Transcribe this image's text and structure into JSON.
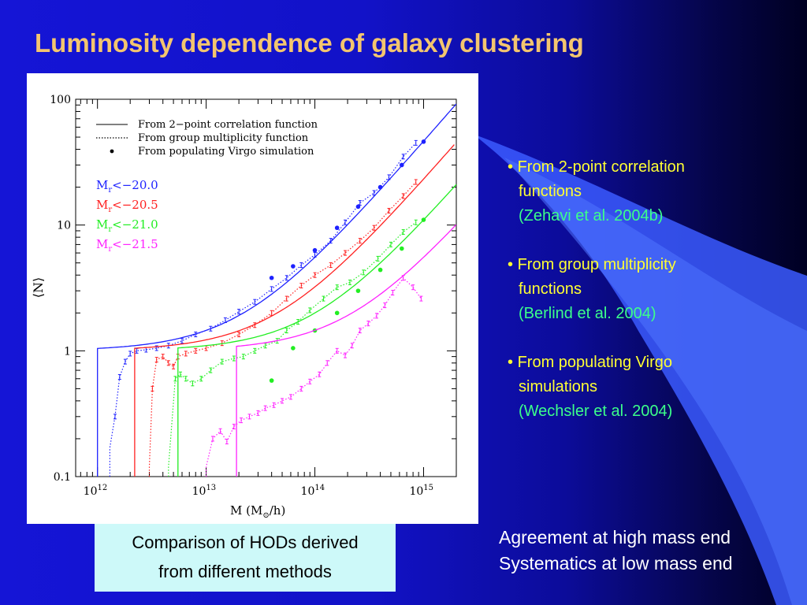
{
  "slide": {
    "title": "Luminosity dependence of galaxy clustering",
    "caption_lines": [
      "Comparison of HODs derived",
      "from different methods"
    ],
    "bullets": [
      {
        "marker": "•",
        "text": "From 2-point correlation",
        "cont": "functions",
        "ref": "(Zehavi et al.  2004b)"
      },
      {
        "marker": "•",
        "text": "From group multiplicity",
        "cont": "functions",
        "ref": "(Berlind et al. 2004)"
      },
      {
        "marker": "•",
        "text": "From populating Virgo",
        "cont": "simulations",
        "ref": "(Wechsler et  al. 2004)"
      }
    ],
    "summary_lines": [
      "Agreement at high mass end",
      "Systematics at low mass end"
    ]
  },
  "chart_data": {
    "type": "line",
    "xscale": "log",
    "yscale": "log",
    "xlim": [
      630000000000,
      2000000000000000
    ],
    "ylim": [
      0.1,
      100
    ],
    "xticks": [
      {
        "value": 1000000000000.0,
        "base": "10",
        "exp": "12"
      },
      {
        "value": 10000000000000.0,
        "base": "10",
        "exp": "13"
      },
      {
        "value": 100000000000000.0,
        "base": "10",
        "exp": "14"
      },
      {
        "value": 1000000000000000.0,
        "base": "10",
        "exp": "15"
      }
    ],
    "yticks": [
      {
        "value": 0.1,
        "label": "0.1"
      },
      {
        "value": 1,
        "label": "1"
      },
      {
        "value": 10,
        "label": "10"
      },
      {
        "value": 100,
        "label": "100"
      }
    ],
    "xlabel": {
      "main": "M  (M",
      "sub": "⊙",
      "tail": "/h)"
    },
    "ylabel": "⟨N⟩",
    "legend_styles": [
      {
        "style": "solid",
        "label": "From 2−point correlation function"
      },
      {
        "style": "dotted",
        "label": "From group multiplicity function"
      },
      {
        "style": "dot",
        "label": "From populating Virgo simulation"
      }
    ],
    "series": [
      {
        "name": "M",
        "sub": "r",
        "tail": "<−20.0",
        "color": "#1e22ff",
        "corr": {
          "mmin": 1000000000000.0,
          "m1": 22000000000000.0
        },
        "group": [
          [
            1300000000000.0,
            0.17
          ],
          [
            1450000000000.0,
            0.3
          ],
          [
            1600000000000.0,
            0.62
          ],
          [
            1800000000000.0,
            0.82
          ],
          [
            2000000000000.0,
            0.95
          ],
          [
            2300000000000.0,
            1.0
          ],
          [
            2800000000000.0,
            1.02
          ],
          [
            3500000000000.0,
            1.05
          ],
          [
            4500000000000.0,
            1.1
          ],
          [
            6000000000000.0,
            1.2
          ],
          [
            8000000000000.0,
            1.35
          ],
          [
            11000000000000.0,
            1.5
          ],
          [
            15000000000000.0,
            1.75
          ],
          [
            20000000000000.0,
            2.05
          ],
          [
            28000000000000.0,
            2.45
          ],
          [
            40000000000000.0,
            3.1
          ],
          [
            55000000000000.0,
            3.8
          ],
          [
            75000000000000.0,
            4.8
          ],
          [
            100000000000000.0,
            5.8
          ],
          [
            140000000000000.0,
            7.5
          ],
          [
            190000000000000.0,
            10.5
          ],
          [
            260000000000000.0,
            15
          ],
          [
            350000000000000.0,
            18
          ],
          [
            480000000000000.0,
            24
          ],
          [
            650000000000000.0,
            35
          ],
          [
            850000000000000.0,
            45
          ]
        ],
        "virgo": [
          [
            40000000000000.0,
            3.8
          ],
          [
            63000000000000.0,
            4.7
          ],
          [
            100000000000000.0,
            6.3
          ],
          [
            160000000000000.0,
            9.5
          ],
          [
            250000000000000.0,
            14
          ],
          [
            400000000000000.0,
            20
          ],
          [
            630000000000000.0,
            30
          ],
          [
            1000000000000000.0,
            46
          ]
        ]
      },
      {
        "name": "M",
        "sub": "r",
        "tail": "<−20.5",
        "color": "#ff2020",
        "corr": {
          "mmin": 2200000000000.0,
          "m1": 45000000000000.0
        },
        "group": [
          [
            3000000000000.0,
            0.12
          ],
          [
            3200000000000.0,
            0.5
          ],
          [
            3500000000000.0,
            0.85
          ],
          [
            4000000000000.0,
            0.9
          ],
          [
            4500000000000.0,
            0.8
          ],
          [
            5000000000000.0,
            0.75
          ],
          [
            5500000000000.0,
            0.9
          ],
          [
            6500000000000.0,
            0.95
          ],
          [
            8000000000000.0,
            1.0
          ],
          [
            10000000000000.0,
            1.05
          ],
          [
            14000000000000.0,
            1.15
          ],
          [
            20000000000000.0,
            1.35
          ],
          [
            28000000000000.0,
            1.6
          ],
          [
            40000000000000.0,
            2.0
          ],
          [
            55000000000000.0,
            2.6
          ],
          [
            75000000000000.0,
            3.3
          ],
          [
            100000000000000.0,
            4.0
          ],
          [
            140000000000000.0,
            4.8
          ],
          [
            190000000000000.0,
            6.0
          ],
          [
            260000000000000.0,
            7.5
          ],
          [
            350000000000000.0,
            9.5
          ],
          [
            480000000000000.0,
            13
          ],
          [
            650000000000000.0,
            17
          ],
          [
            850000000000000.0,
            22
          ]
        ]
      },
      {
        "name": "M",
        "sub": "r",
        "tail": "<−21.0",
        "color": "#22ee22",
        "corr": {
          "mmin": 5500000000000.0,
          "m1": 100000000000000.0
        },
        "group": [
          [
            4500000000000.0,
            0.12
          ],
          [
            5200000000000.0,
            0.6
          ],
          [
            5800000000000.0,
            0.65
          ],
          [
            6500000000000.0,
            0.6
          ],
          [
            7500000000000.0,
            0.55
          ],
          [
            9000000000000.0,
            0.6
          ],
          [
            11000000000000.0,
            0.7
          ],
          [
            14000000000000.0,
            0.82
          ],
          [
            18000000000000.0,
            0.87
          ],
          [
            22000000000000.0,
            0.9
          ],
          [
            28000000000000.0,
            1.0
          ],
          [
            35000000000000.0,
            1.1
          ],
          [
            45000000000000.0,
            1.2
          ],
          [
            55000000000000.0,
            1.45
          ],
          [
            70000000000000.0,
            1.7
          ],
          [
            90000000000000.0,
            2.1
          ],
          [
            120000000000000.0,
            2.6
          ],
          [
            160000000000000.0,
            3.2
          ],
          [
            210000000000000.0,
            3.5
          ],
          [
            280000000000000.0,
            4.2
          ],
          [
            380000000000000.0,
            5.4
          ],
          [
            500000000000000.0,
            7
          ],
          [
            650000000000000.0,
            8.8
          ],
          [
            850000000000000.0,
            10.5
          ]
        ],
        "virgo": [
          [
            40000000000000.0,
            0.58
          ],
          [
            63000000000000.0,
            1.05
          ],
          [
            100000000000000.0,
            1.45
          ],
          [
            160000000000000.0,
            2.0
          ],
          [
            250000000000000.0,
            3.0
          ],
          [
            400000000000000.0,
            4.4
          ],
          [
            630000000000000.0,
            6.5
          ],
          [
            1000000000000000.0,
            11
          ]
        ]
      },
      {
        "name": "M",
        "sub": "r",
        "tail": "<−21.5",
        "color": "#ff22ff",
        "corr": {
          "mmin": 19000000000000.0,
          "m1": 220000000000000.0
        },
        "group": [
          [
            10000000000000.0,
            0.12
          ],
          [
            11500000000000.0,
            0.2
          ],
          [
            13500000000000.0,
            0.23
          ],
          [
            15500000000000.0,
            0.19
          ],
          [
            18000000000000.0,
            0.25
          ],
          [
            21000000000000.0,
            0.28
          ],
          [
            25000000000000.0,
            0.3
          ],
          [
            30000000000000.0,
            0.32
          ],
          [
            35000000000000.0,
            0.35
          ],
          [
            42000000000000.0,
            0.37
          ],
          [
            50000000000000.0,
            0.4
          ],
          [
            60000000000000.0,
            0.43
          ],
          [
            75000000000000.0,
            0.5
          ],
          [
            90000000000000.0,
            0.57
          ],
          [
            110000000000000.0,
            0.65
          ],
          [
            130000000000000.0,
            0.8
          ],
          [
            160000000000000.0,
            1.0
          ],
          [
            190000000000000.0,
            0.92
          ],
          [
            220000000000000.0,
            1.1
          ],
          [
            260000000000000.0,
            1.45
          ],
          [
            310000000000000.0,
            1.65
          ],
          [
            370000000000000.0,
            1.9
          ],
          [
            440000000000000.0,
            2.3
          ],
          [
            520000000000000.0,
            2.9
          ],
          [
            650000000000000.0,
            3.8
          ],
          [
            800000000000000.0,
            3.2
          ],
          [
            950000000000000.0,
            2.6
          ]
        ]
      }
    ]
  }
}
